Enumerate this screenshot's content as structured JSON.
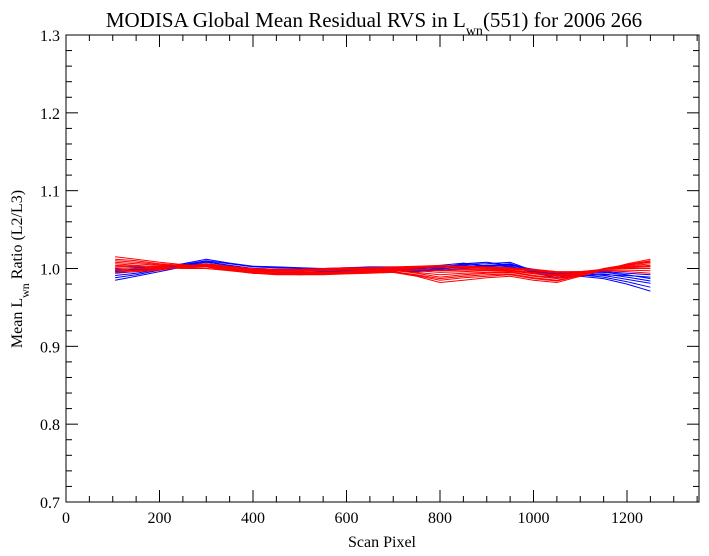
{
  "chart_data": {
    "type": "line",
    "title": {
      "prefix": "MODISA Global Mean Residual RVS in L",
      "subscript": "wn",
      "suffix": "(551) for 2006 266"
    },
    "xlabel": "Scan Pixel",
    "ylabel": {
      "prefix": "Mean L",
      "subscript": "wn",
      "suffix": " Ratio (L2/L3)"
    },
    "xlim": [
      0,
      1354
    ],
    "ylim": [
      0.7,
      1.3
    ],
    "x_ticks": [
      0,
      200,
      400,
      600,
      800,
      1000,
      1200
    ],
    "x_tick_labels": [
      "0",
      "200",
      "400",
      "600",
      "800",
      "1000",
      "1200"
    ],
    "y_ticks": [
      0.7,
      0.8,
      0.9,
      1.0,
      1.1,
      1.2,
      1.3
    ],
    "y_tick_labels": [
      "0.7",
      "0.8",
      "0.9",
      "1.0",
      "1.1",
      "1.2",
      "1.3"
    ],
    "x": [
      105,
      150,
      200,
      250,
      300,
      350,
      400,
      450,
      500,
      550,
      600,
      650,
      700,
      750,
      800,
      850,
      900,
      950,
      1000,
      1050,
      1100,
      1150,
      1200,
      1250
    ],
    "grid": false,
    "legend": "none",
    "series": [
      {
        "color": "#0000ff",
        "values": [
          0.985,
          0.99,
          0.996,
          1.002,
          1.005,
          1.002,
          0.998,
          0.996,
          0.995,
          0.995,
          0.996,
          0.997,
          0.998,
          0.997,
          0.999,
          1.002,
          1.004,
          1.006,
          0.994,
          0.988,
          0.99,
          0.987,
          0.98,
          0.971
        ]
      },
      {
        "color": "#0000ff",
        "values": [
          0.988,
          0.992,
          0.998,
          1.004,
          1.008,
          1.004,
          1.0,
          0.999,
          0.998,
          0.997,
          0.998,
          0.999,
          1.0,
          0.999,
          1.002,
          1.005,
          1.006,
          1.008,
          0.997,
          0.991,
          0.992,
          0.989,
          0.983,
          0.976
        ]
      },
      {
        "color": "#0000ff",
        "values": [
          0.991,
          0.994,
          0.999,
          1.005,
          1.01,
          1.006,
          1.002,
          1.001,
          1.0,
          0.999,
          0.999,
          1.001,
          1.001,
          1.001,
          1.003,
          1.004,
          1.002,
          1.005,
          0.998,
          0.992,
          0.994,
          0.991,
          0.986,
          0.981
        ]
      },
      {
        "color": "#0000ff",
        "values": [
          0.994,
          0.996,
          1.0,
          1.004,
          1.006,
          1.003,
          0.999,
          0.998,
          0.997,
          0.996,
          0.997,
          0.998,
          0.999,
          0.998,
          1.0,
          1.003,
          1.004,
          1.003,
          0.996,
          0.99,
          0.993,
          0.993,
          0.989,
          0.984
        ]
      },
      {
        "color": "#0000ff",
        "values": [
          0.996,
          0.998,
          1.001,
          1.006,
          1.012,
          1.007,
          1.003,
          1.002,
          1.001,
          1.0,
          1.001,
          1.002,
          1.002,
          1.0,
          1.001,
          1.006,
          1.008,
          1.004,
          0.999,
          0.994,
          0.995,
          0.995,
          0.992,
          0.987
        ]
      },
      {
        "color": "#0000ff",
        "values": [
          0.998,
          0.999,
          1.0,
          1.003,
          1.004,
          1.001,
          0.997,
          0.995,
          0.994,
          0.994,
          0.995,
          0.996,
          0.997,
          0.996,
          0.998,
          1.0,
          1.001,
          1.002,
          0.995,
          0.99,
          0.991,
          0.992,
          0.991,
          0.989
        ]
      },
      {
        "color": "#0000ff",
        "values": [
          1.0,
          1.001,
          1.002,
          1.005,
          1.009,
          1.004,
          1.0,
          0.999,
          0.998,
          0.998,
          0.999,
          1.0,
          1.001,
          0.999,
          1.004,
          1.007,
          1.003,
          1.006,
          0.997,
          0.993,
          0.994,
          0.996,
          0.994,
          0.992
        ]
      },
      {
        "color": "#ff0000",
        "values": [
          1.015,
          1.012,
          1.008,
          1.005,
          1.003,
          0.999,
          0.995,
          0.993,
          0.992,
          0.992,
          0.993,
          0.994,
          0.995,
          0.99,
          0.982,
          0.985,
          0.988,
          0.99,
          0.985,
          0.982,
          0.99,
          0.998,
          1.006,
          1.012
        ]
      },
      {
        "color": "#ff0000",
        "values": [
          1.01,
          1.008,
          1.005,
          1.003,
          1.002,
          0.998,
          0.994,
          0.993,
          0.993,
          0.993,
          0.994,
          0.995,
          0.996,
          0.992,
          0.987,
          0.99,
          0.992,
          0.993,
          0.988,
          0.985,
          0.992,
          0.999,
          1.004,
          1.008
        ]
      },
      {
        "color": "#ff0000",
        "values": [
          1.006,
          1.004,
          1.002,
          1.001,
          1.0,
          0.997,
          0.994,
          0.993,
          0.993,
          0.994,
          0.995,
          0.996,
          0.997,
          0.995,
          0.992,
          0.994,
          0.995,
          0.996,
          0.991,
          0.988,
          0.993,
          0.999,
          1.003,
          1.006
        ]
      },
      {
        "color": "#ff0000",
        "values": [
          1.003,
          1.002,
          1.001,
          1.0,
          1.0,
          0.998,
          0.995,
          0.994,
          0.994,
          0.995,
          0.996,
          0.997,
          0.998,
          0.997,
          0.995,
          0.996,
          0.997,
          0.997,
          0.993,
          0.99,
          0.994,
          0.999,
          1.002,
          1.004
        ]
      },
      {
        "color": "#ff0000",
        "values": [
          1.001,
          1.0,
          1.0,
          1.001,
          1.002,
          1.0,
          0.997,
          0.996,
          0.996,
          0.997,
          0.998,
          0.998,
          0.999,
          0.999,
          0.998,
          0.999,
          0.999,
          0.998,
          0.995,
          0.992,
          0.995,
          0.999,
          1.001,
          1.002
        ]
      },
      {
        "color": "#ff0000",
        "values": [
          0.999,
          0.998,
          0.999,
          1.002,
          1.004,
          1.001,
          0.998,
          0.997,
          0.997,
          0.998,
          0.999,
          0.999,
          1.0,
          1.001,
          1.001,
          1.001,
          1.0,
          0.999,
          0.997,
          0.994,
          0.996,
          0.999,
          1.0,
          1.0
        ]
      },
      {
        "color": "#ff0000",
        "values": [
          0.997,
          0.997,
          0.998,
          1.002,
          1.005,
          1.002,
          0.999,
          0.998,
          0.998,
          0.999,
          1.0,
          1.0,
          1.001,
          1.002,
          1.003,
          1.002,
          1.001,
          1.0,
          0.998,
          0.995,
          0.996,
          0.998,
          0.998,
          0.997
        ]
      },
      {
        "color": "#ff0000",
        "values": [
          1.008,
          1.006,
          1.004,
          1.003,
          1.003,
          1.0,
          0.996,
          0.995,
          0.995,
          0.995,
          0.996,
          0.997,
          0.998,
          0.994,
          0.989,
          0.992,
          0.994,
          0.995,
          0.99,
          0.987,
          0.992,
          1.0,
          1.005,
          1.009
        ]
      },
      {
        "color": "#ff0000",
        "values": [
          1.004,
          1.003,
          1.003,
          1.004,
          1.004,
          1.001,
          0.998,
          0.997,
          0.997,
          0.998,
          0.999,
          1.0,
          1.0,
          0.999,
          0.997,
          0.998,
          0.998,
          0.997,
          0.994,
          0.991,
          0.994,
          0.999,
          1.001,
          1.003
        ]
      },
      {
        "color": "#ff0000",
        "values": [
          1.012,
          1.01,
          1.006,
          1.004,
          1.002,
          0.998,
          0.994,
          0.992,
          0.992,
          0.993,
          0.994,
          0.995,
          0.996,
          0.991,
          0.985,
          0.988,
          0.99,
          0.992,
          0.987,
          0.984,
          0.991,
          0.999,
          1.005,
          1.01
        ]
      },
      {
        "color": "#ff0000",
        "values": [
          0.995,
          0.996,
          0.998,
          1.003,
          1.006,
          1.003,
          1.0,
          0.999,
          0.999,
          1.0,
          1.001,
          1.001,
          1.002,
          1.003,
          1.004,
          1.003,
          1.002,
          1.001,
          0.999,
          0.996,
          0.996,
          0.997,
          0.996,
          0.994
        ]
      }
    ]
  }
}
